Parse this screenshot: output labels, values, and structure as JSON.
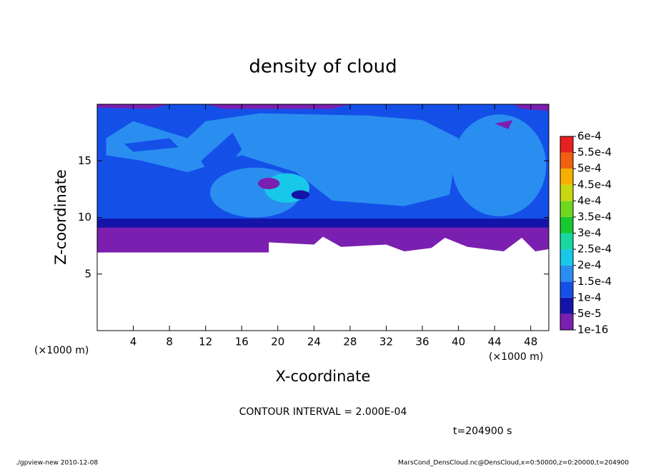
{
  "chart_data": {
    "type": "contour",
    "title": "density of cloud",
    "xlabel": "X-coordinate",
    "ylabel": "Z-coordinate",
    "x_unit_label": "(×1000 m)",
    "y_unit_label": "(×1000 m)",
    "xlim": [
      0,
      50
    ],
    "xticks": [
      4,
      8,
      12,
      16,
      20,
      24,
      28,
      32,
      36,
      40,
      44,
      48
    ],
    "ylim": [
      0,
      20
    ],
    "yticks": [
      5,
      10,
      15
    ],
    "colorbar": {
      "ticks": [
        {
          "value": 1e-16,
          "label": "1e-16"
        },
        {
          "value": 5e-05,
          "label": "5e-5"
        },
        {
          "value": 0.0001,
          "label": "1e-4"
        },
        {
          "value": 0.00015,
          "label": "1.5e-4"
        },
        {
          "value": 0.0002,
          "label": "2e-4"
        },
        {
          "value": 0.00025,
          "label": "2.5e-4"
        },
        {
          "value": 0.0003,
          "label": "3e-4"
        },
        {
          "value": 0.00035,
          "label": "3.5e-4"
        },
        {
          "value": 0.0004,
          "label": "4e-4"
        },
        {
          "value": 0.00045,
          "label": "4.5e-4"
        },
        {
          "value": 0.0005,
          "label": "5e-4"
        },
        {
          "value": 0.00055,
          "label": "5.5e-4"
        },
        {
          "value": 0.0006,
          "label": "6e-4"
        }
      ],
      "colors": [
        "#7a1fb0",
        "#1414a8",
        "#1450e8",
        "#2a8ef0",
        "#18c8e8",
        "#18d8a0",
        "#18c830",
        "#70d820",
        "#c8d810",
        "#f8b000",
        "#f06010",
        "#e82020"
      ]
    },
    "contour_interval_label": "CONTOUR INTERVAL = 2.000E-04",
    "time_label": "t=204900 s"
  },
  "footer": {
    "left": "./gpview-new   2010-12-08",
    "right": "MarsCond_DensCloud.nc@DensCloud,x=0:50000,z=0:20000,t=204900"
  }
}
